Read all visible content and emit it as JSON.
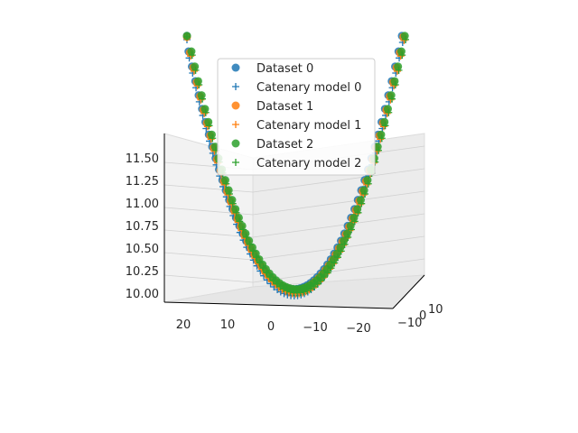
{
  "chart_data": {
    "type": "scatter",
    "projection": "3d",
    "grid": true,
    "legend_position": "top-center",
    "colors": {
      "Dataset 0": "#1f77b4",
      "Catenary model 0": "#1f77b4",
      "Dataset 1": "#ff7f0e",
      "Catenary model 1": "#ff7f0e",
      "Dataset 2": "#2ca02c",
      "Catenary model 2": "#2ca02c"
    },
    "legend": [
      {
        "label": "Dataset 0",
        "marker": "circle",
        "color": "#1f77b4"
      },
      {
        "label": "Catenary model 0",
        "marker": "plus",
        "color": "#1f77b4"
      },
      {
        "label": "Dataset 1",
        "marker": "circle",
        "color": "#ff7f0e"
      },
      {
        "label": "Catenary model 1",
        "marker": "plus",
        "color": "#ff7f0e"
      },
      {
        "label": "Dataset 2",
        "marker": "circle",
        "color": "#2ca02c"
      },
      {
        "label": "Catenary model 2",
        "marker": "plus",
        "color": "#2ca02c"
      }
    ],
    "x_ticks": [
      "20",
      "10",
      "0",
      "−10",
      "−20"
    ],
    "y_ticks": [
      "10",
      "0",
      "−10"
    ],
    "z_ticks": [
      "11.50",
      "11.25",
      "11.00",
      "10.75",
      "10.50",
      "10.25",
      "10.00"
    ],
    "xlim": [
      -25,
      25
    ],
    "zlim": [
      9.95,
      11.65
    ],
    "catenary_sag": 0.0046,
    "series": [
      {
        "name": "Dataset 0",
        "kind": "data",
        "z_bottom": 10.06,
        "x": [
          -24,
          -21,
          -18,
          -15,
          -12,
          -9,
          -6,
          -3,
          0,
          3,
          6,
          9,
          12,
          15,
          18,
          21,
          24
        ]
      },
      {
        "name": "Catenary model 0",
        "kind": "model",
        "z_bottom": 10.02,
        "x": [
          -24,
          -21,
          -18,
          -15,
          -12,
          -9,
          -6,
          -3,
          0,
          3,
          6,
          9,
          12,
          15,
          18,
          21,
          24
        ]
      },
      {
        "name": "Dataset 1",
        "kind": "data",
        "z_bottom": 10.05,
        "x": [
          -24,
          -21,
          -18,
          -15,
          -12,
          -9,
          -6,
          -3,
          0,
          3,
          6,
          9,
          12,
          15,
          18,
          21,
          24
        ]
      },
      {
        "name": "Catenary model 1",
        "kind": "model",
        "z_bottom": 10.04,
        "x": [
          -24,
          -21,
          -18,
          -15,
          -12,
          -9,
          -6,
          -3,
          0,
          3,
          6,
          9,
          12,
          15,
          18,
          21,
          24
        ]
      },
      {
        "name": "Dataset 2",
        "kind": "data",
        "z_bottom": 10.06,
        "x": [
          -24,
          -21,
          -18,
          -15,
          -12,
          -9,
          -6,
          -3,
          0,
          3,
          6,
          9,
          12,
          15,
          18,
          21,
          24
        ]
      },
      {
        "name": "Catenary model 2",
        "kind": "model",
        "z_bottom": 10.05,
        "x": [
          -24,
          -21,
          -18,
          -15,
          -12,
          -9,
          -6,
          -3,
          0,
          3,
          6,
          9,
          12,
          15,
          18,
          21,
          24
        ]
      }
    ]
  }
}
